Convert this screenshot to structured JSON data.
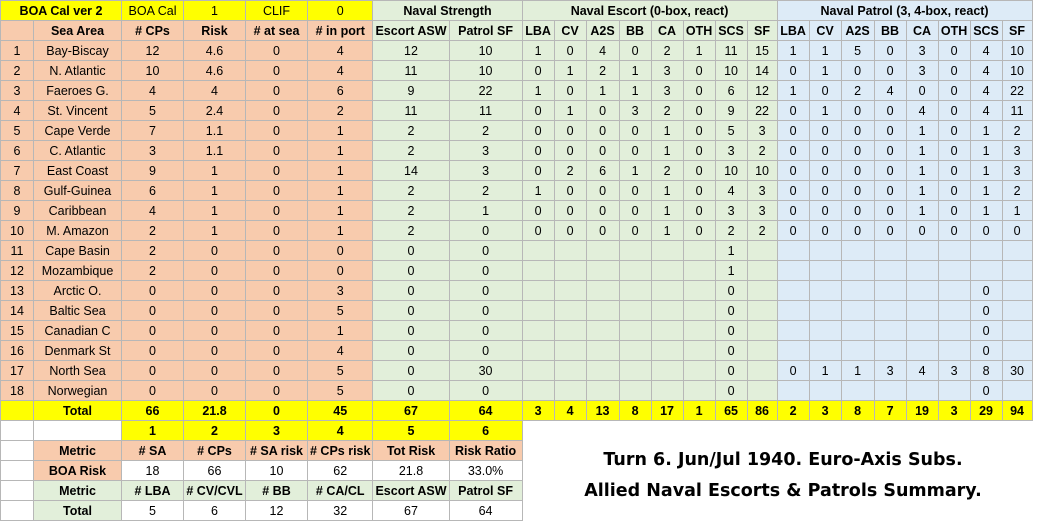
{
  "header": {
    "cells": [
      "BOA Cal ver 2",
      "BOA Cal",
      "1",
      "CLIF",
      "0"
    ],
    "naval_strength": "Naval Strength",
    "naval_escort": "Naval Escort (0-box, react)",
    "naval_patrol": "Naval Patrol (3,  4-box, react)"
  },
  "columns": [
    "",
    "Sea Area",
    "# CPs",
    "Risk",
    "# at sea",
    "# in port",
    "Escort ASW",
    "Patrol SF",
    "LBA",
    "CV",
    "A2S",
    "BB",
    "CA",
    "OTH",
    "SCS",
    "SF",
    "LBA",
    "CV",
    "A2S",
    "BB",
    "CA",
    "OTH",
    "SCS",
    "SF"
  ],
  "rows": [
    [
      "1",
      "Bay-Biscay",
      "12",
      "4.6",
      "0",
      "4",
      "12",
      "10",
      "1",
      "0",
      "4",
      "0",
      "2",
      "1",
      "11",
      "15",
      "1",
      "1",
      "5",
      "0",
      "3",
      "0",
      "4",
      "10"
    ],
    [
      "2",
      "N. Atlantic",
      "10",
      "4.6",
      "0",
      "4",
      "11",
      "10",
      "0",
      "1",
      "2",
      "1",
      "3",
      "0",
      "10",
      "14",
      "0",
      "1",
      "0",
      "0",
      "3",
      "0",
      "4",
      "10"
    ],
    [
      "3",
      "Faeroes G.",
      "4",
      "4",
      "0",
      "6",
      "9",
      "22",
      "1",
      "0",
      "1",
      "1",
      "3",
      "0",
      "6",
      "12",
      "1",
      "0",
      "2",
      "4",
      "0",
      "0",
      "4",
      "22"
    ],
    [
      "4",
      "St. Vincent",
      "5",
      "2.4",
      "0",
      "2",
      "11",
      "11",
      "0",
      "1",
      "0",
      "3",
      "2",
      "0",
      "9",
      "22",
      "0",
      "1",
      "0",
      "0",
      "4",
      "0",
      "4",
      "11"
    ],
    [
      "5",
      "Cape Verde",
      "7",
      "1.1",
      "0",
      "1",
      "2",
      "2",
      "0",
      "0",
      "0",
      "0",
      "1",
      "0",
      "5",
      "3",
      "0",
      "0",
      "0",
      "0",
      "1",
      "0",
      "1",
      "2"
    ],
    [
      "6",
      "C. Atlantic",
      "3",
      "1.1",
      "0",
      "1",
      "2",
      "3",
      "0",
      "0",
      "0",
      "0",
      "1",
      "0",
      "3",
      "2",
      "0",
      "0",
      "0",
      "0",
      "1",
      "0",
      "1",
      "3"
    ],
    [
      "7",
      "East Coast",
      "9",
      "1",
      "0",
      "1",
      "14",
      "3",
      "0",
      "2",
      "6",
      "1",
      "2",
      "0",
      "10",
      "10",
      "0",
      "0",
      "0",
      "0",
      "1",
      "0",
      "1",
      "3"
    ],
    [
      "8",
      "Gulf-Guinea",
      "6",
      "1",
      "0",
      "1",
      "2",
      "2",
      "1",
      "0",
      "0",
      "0",
      "1",
      "0",
      "4",
      "3",
      "0",
      "0",
      "0",
      "0",
      "1",
      "0",
      "1",
      "2"
    ],
    [
      "9",
      "Caribbean",
      "4",
      "1",
      "0",
      "1",
      "2",
      "1",
      "0",
      "0",
      "0",
      "0",
      "1",
      "0",
      "3",
      "3",
      "0",
      "0",
      "0",
      "0",
      "1",
      "0",
      "1",
      "1"
    ],
    [
      "10",
      "M. Amazon",
      "2",
      "1",
      "0",
      "1",
      "2",
      "0",
      "0",
      "0",
      "0",
      "0",
      "1",
      "0",
      "2",
      "2",
      "0",
      "0",
      "0",
      "0",
      "0",
      "0",
      "0",
      "0"
    ],
    [
      "11",
      "Cape Basin",
      "2",
      "0",
      "0",
      "0",
      "0",
      "0",
      "",
      "",
      "",
      "",
      "",
      "",
      "1",
      "",
      "",
      "",
      "",
      "",
      "",
      "",
      "",
      ""
    ],
    [
      "12",
      "Mozambique",
      "2",
      "0",
      "0",
      "0",
      "0",
      "0",
      "",
      "",
      "",
      "",
      "",
      "",
      "1",
      "",
      "",
      "",
      "",
      "",
      "",
      "",
      "",
      ""
    ],
    [
      "13",
      "Arctic O.",
      "0",
      "0",
      "0",
      "3",
      "0",
      "0",
      "",
      "",
      "",
      "",
      "",
      "",
      "0",
      "",
      "",
      "",
      "",
      "",
      "",
      "",
      "0",
      ""
    ],
    [
      "14",
      "Baltic Sea",
      "0",
      "0",
      "0",
      "5",
      "0",
      "0",
      "",
      "",
      "",
      "",
      "",
      "",
      "0",
      "",
      "",
      "",
      "",
      "",
      "",
      "",
      "0",
      ""
    ],
    [
      "15",
      "Canadian C",
      "0",
      "0",
      "0",
      "1",
      "0",
      "0",
      "",
      "",
      "",
      "",
      "",
      "",
      "0",
      "",
      "",
      "",
      "",
      "",
      "",
      "",
      "0",
      ""
    ],
    [
      "16",
      "Denmark St",
      "0",
      "0",
      "0",
      "4",
      "0",
      "0",
      "",
      "",
      "",
      "",
      "",
      "",
      "0",
      "",
      "",
      "",
      "",
      "",
      "",
      "",
      "0",
      ""
    ],
    [
      "17",
      "North Sea",
      "0",
      "0",
      "0",
      "5",
      "0",
      "30",
      "",
      "",
      "",
      "",
      "",
      "",
      "0",
      "",
      "0",
      "1",
      "1",
      "3",
      "4",
      "3",
      "8",
      "30"
    ],
    [
      "18",
      "Norwegian",
      "0",
      "0",
      "0",
      "5",
      "0",
      "0",
      "",
      "",
      "",
      "",
      "",
      "",
      "0",
      "",
      "",
      "",
      "",
      "",
      "",
      "",
      "0",
      ""
    ]
  ],
  "total_row": [
    "",
    "Total",
    "66",
    "21.8",
    "0",
    "45",
    "67",
    "64",
    "3",
    "4",
    "13",
    "8",
    "17",
    "1",
    "65",
    "86",
    "2",
    "3",
    "8",
    "7",
    "19",
    "3",
    "29",
    "94"
  ],
  "metrics": {
    "numbers": [
      "1",
      "2",
      "3",
      "4",
      "5",
      "6"
    ],
    "metric_label": "Metric",
    "headers1": [
      "# SA",
      "# CPs",
      "# SA risk",
      "# CPs risk",
      "Tot Risk",
      "Risk Ratio"
    ],
    "boa_label": "BOA Risk",
    "boa_values": [
      "18",
      "66",
      "10",
      "62",
      "21.8",
      "33.0%"
    ],
    "headers2": [
      "# LBA",
      "# CV/CVL",
      "# BB",
      "# CA/CL",
      "Escort ASW",
      "Patrol SF"
    ],
    "total_label": "Total",
    "total_values": [
      "5",
      "6",
      "12",
      "32",
      "67",
      "64"
    ]
  },
  "summary": {
    "line1": "Turn 6.  Jun/Jul 1940.   Euro-Axis Subs.",
    "line2": "Allied Naval Escorts & Patrols Summary."
  },
  "colors": {
    "peach": "#f8cbad",
    "yellow": "#ffff00",
    "green": "#e2efda",
    "blue": "#ddebf7"
  }
}
